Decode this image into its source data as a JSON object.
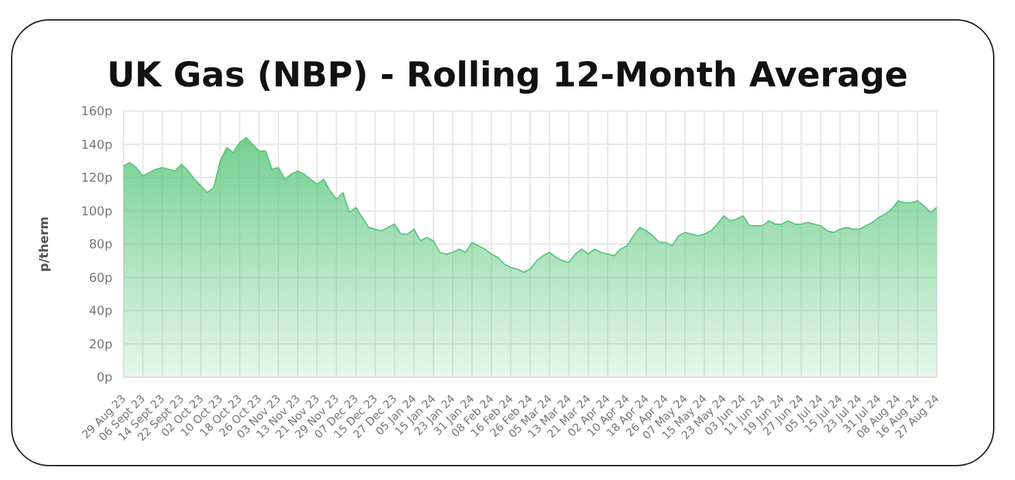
{
  "chart_data": {
    "type": "area",
    "title": "UK Gas (NBP) - Rolling 12-Month Average",
    "ylabel": "p/therm",
    "categories": [
      "29 Aug 23",
      null,
      null,
      "06 Sept 23",
      null,
      null,
      "14 Sept 23",
      null,
      null,
      "22 Sept 23",
      null,
      null,
      "02 Oct 23",
      null,
      null,
      "10 Oct 23",
      null,
      null,
      "18 Oct 23",
      null,
      null,
      "26 Oct 23",
      null,
      null,
      "03 Nov 23",
      null,
      null,
      "13 Nov 23",
      null,
      null,
      "21 Nov 23",
      null,
      null,
      "29 Nov 23",
      null,
      null,
      "07 Dec 23",
      null,
      null,
      "15 Dec 23",
      null,
      null,
      "27 Dec 23",
      null,
      null,
      "05 Jan 24",
      null,
      null,
      "15 Jan 24",
      null,
      null,
      "23 Jan 24",
      null,
      null,
      "31 Jan 24",
      null,
      null,
      "08 Feb 24",
      null,
      null,
      "16 Feb 24",
      null,
      null,
      "26 Feb 24",
      null,
      null,
      "05 Mar 24",
      null,
      null,
      "13 Mar 24",
      null,
      null,
      "21 Mar 24",
      null,
      null,
      "02 Apr 24",
      null,
      null,
      "10 Apr 24",
      null,
      null,
      "18 Apr 24",
      null,
      null,
      "26 Apr 24",
      null,
      null,
      "07 May 24",
      null,
      null,
      "15 May 24",
      null,
      null,
      "23 May 24",
      null,
      null,
      "03 Jun 24",
      null,
      null,
      "11 Jun 24",
      null,
      null,
      "19 Jun 24",
      null,
      null,
      "27 Jun 24",
      null,
      null,
      "05 Jul 24",
      null,
      null,
      "15 Jul 24",
      null,
      null,
      "23 Jul 24",
      null,
      null,
      "31 Jul 24",
      null,
      null,
      "08 Aug 24",
      null,
      null,
      "16 Aug 24",
      null,
      null,
      "27 Aug 24"
    ],
    "series": [
      {
        "color": "#5cc77e",
        "values": [
          127,
          129,
          126,
          121,
          123,
          125,
          126,
          125,
          124,
          128,
          124,
          119,
          115,
          111,
          114,
          130,
          138,
          135,
          141,
          144,
          140,
          136,
          136,
          125,
          126,
          119,
          122,
          124,
          122,
          119,
          116,
          119,
          112,
          107,
          111,
          99,
          102,
          96,
          90,
          89,
          88,
          90,
          92,
          86,
          86,
          89,
          82,
          84,
          82,
          75,
          74,
          75,
          77,
          75,
          81,
          79,
          77,
          74,
          72,
          68,
          66,
          65,
          63,
          65,
          70,
          73,
          75,
          72,
          70,
          69,
          74,
          77,
          74,
          77,
          75,
          74,
          73,
          77,
          79,
          85,
          90,
          88,
          85,
          81,
          81,
          79,
          85,
          87,
          86,
          85,
          86,
          88,
          92,
          97,
          94,
          95,
          97,
          91,
          91,
          91,
          94,
          92,
          92,
          94,
          92,
          92,
          93,
          92,
          91,
          88,
          87,
          89,
          90,
          89,
          89,
          91,
          93,
          96,
          98,
          101,
          106,
          105,
          105,
          106,
          103,
          99,
          102
        ]
      }
    ],
    "ylim": [
      0,
      160
    ],
    "yticks": [
      {
        "value": 0,
        "label": "0p"
      },
      {
        "value": 20,
        "label": "20p"
      },
      {
        "value": 40,
        "label": "40p"
      },
      {
        "value": 60,
        "label": "60p"
      },
      {
        "value": 80,
        "label": "80p"
      },
      {
        "value": 100,
        "label": "100p"
      },
      {
        "value": 120,
        "label": "120p"
      },
      {
        "value": 140,
        "label": "140p"
      },
      {
        "value": 160,
        "label": "160p"
      }
    ],
    "grid": true
  }
}
